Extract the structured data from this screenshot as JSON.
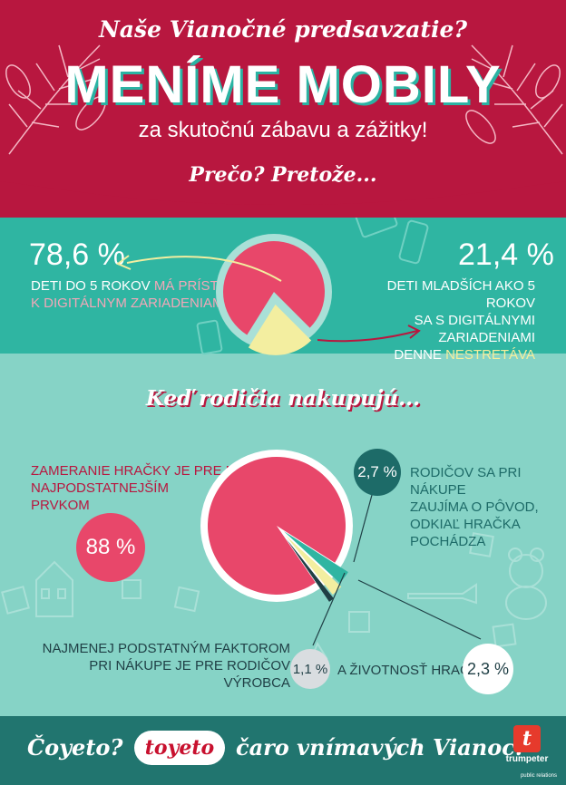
{
  "header": {
    "tagline": "Naše Vianočné predsavzatie?",
    "title": "MENÍME MOBILY",
    "subtitle": "za skutočnú zábavu a zážitky!",
    "why": "Prečo? Pretože..."
  },
  "stat_left": {
    "value": "78,6 %",
    "line1_a": "Deti do 5 rokov ",
    "line1_b": "má prístup",
    "line2": "k digitálnym zariadeniam"
  },
  "stat_right": {
    "value": "21,4 %",
    "line1": "Deti mladších ako 5 rokov",
    "line2": "sa s digitálnymi zariadeniami",
    "line3_a": "denne ",
    "line3_b": "nestretáva"
  },
  "section2": {
    "heading": "Keď rodičia nakupujú...",
    "big_label_1": "zameranie hračky je pre nich",
    "big_label_2": "najpodstatnejším",
    "big_label_3": "prvkom",
    "big_value": "88 %",
    "origin_value": "2,7 %",
    "origin_label_1": "rodičov sa pri nákupe",
    "origin_label_2": "zaujíma o pôvod,",
    "origin_label_3": "odkiaľ hračka",
    "origin_label_4": "pochádza",
    "least_label_1": "Najmenej podstatným faktorom",
    "least_label_2": "pri nákupe je pre rodičov výrobca",
    "maker_value": "1,1 %",
    "life_label": "a životnosť hračky",
    "life_value": "2,3 %"
  },
  "footer": {
    "left": "Čoyeto?",
    "logo": "toyeto",
    "right": "čaro vnímavých Vianoc!",
    "brand_mark": "t",
    "brand_name": "trumpeter",
    "brand_sub": "public relations"
  },
  "chart_data": [
    {
      "type": "pie",
      "labels": [
        "Deti do 5 rokov má prístup k digitálnym zariadeniam",
        "Deti mladších ako 5 rokov sa s digitálnymi zariadeniami denne nestretáva"
      ],
      "values": [
        78.6,
        21.4
      ],
      "colors": [
        "#e8476a",
        "#f3eea0"
      ]
    },
    {
      "type": "pie",
      "labels": [
        "zameranie hračky",
        "pôvod",
        "životnosť hračky",
        "výrobca"
      ],
      "values": [
        88,
        2.7,
        2.3,
        1.1
      ],
      "colors": [
        "#e8476a",
        "#2fb5a2",
        "#f3eea0",
        "#1f3f45"
      ]
    }
  ],
  "colors": {
    "header_red": "#b8173f",
    "teal": "#2fb5a2",
    "light_teal": "#86d3c6",
    "footer_teal": "#21756f",
    "pink": "#e8476a",
    "yellow": "#f3eea0"
  }
}
